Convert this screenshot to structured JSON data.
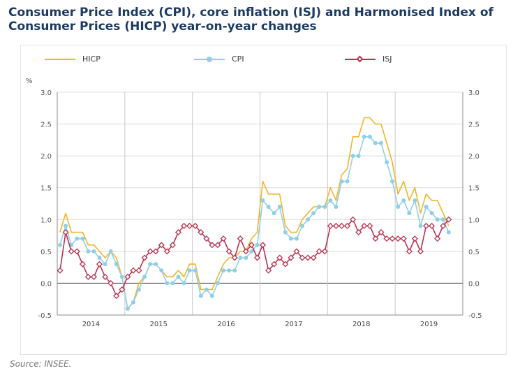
{
  "title": "Consumer Price Index (CPI), core inflation (ISJ) and Harmonised Index of Consumer Prices (HICP) year-on-year changes",
  "source": "Source: INSEE.",
  "colors": {
    "HICP": "#f0b429",
    "CPI": "#8fd0e6",
    "ISJ": "#b8324f"
  },
  "legend": [
    {
      "name": "HICP",
      "marker": "none"
    },
    {
      "name": "CPI",
      "marker": "circle"
    },
    {
      "name": "ISJ",
      "marker": "diamond"
    }
  ],
  "chart_data": {
    "type": "line",
    "unit_label": "%",
    "ylim": [
      -0.5,
      3.0
    ],
    "yticks": [
      "3.0",
      "2.5",
      "2.0",
      "1.5",
      "1.0",
      "0.5",
      "0.0",
      "-0.5"
    ],
    "yticks_values": [
      3.0,
      2.5,
      2.0,
      1.5,
      1.0,
      0.5,
      0.0,
      -0.5
    ],
    "years": [
      "2014",
      "2015",
      "2016",
      "2017",
      "2018",
      "2019"
    ],
    "months_per_year": 12,
    "x_start": "2014-01",
    "grid": true,
    "legend_position": "top",
    "series": [
      {
        "name": "HICP",
        "values": [
          0.8,
          1.1,
          0.8,
          0.8,
          0.8,
          0.6,
          0.6,
          0.5,
          0.4,
          0.5,
          0.4,
          0.1,
          -0.4,
          -0.3,
          0.0,
          0.1,
          0.3,
          0.3,
          0.2,
          0.1,
          0.1,
          0.2,
          0.1,
          0.3,
          0.3,
          -0.1,
          -0.1,
          -0.1,
          0.1,
          0.3,
          0.4,
          0.4,
          0.5,
          0.5,
          0.7,
          0.8,
          1.6,
          1.4,
          1.4,
          1.4,
          0.9,
          0.8,
          0.8,
          1.0,
          1.1,
          1.2,
          1.2,
          1.2,
          1.5,
          1.3,
          1.7,
          1.8,
          2.3,
          2.3,
          2.6,
          2.6,
          2.5,
          2.5,
          2.2,
          1.9,
          1.4,
          1.6,
          1.3,
          1.5,
          1.1,
          1.4,
          1.3,
          1.3,
          1.1,
          0.9
        ]
      },
      {
        "name": "CPI",
        "values": [
          0.6,
          0.9,
          0.6,
          0.7,
          0.7,
          0.5,
          0.5,
          0.4,
          0.3,
          0.5,
          0.3,
          0.1,
          -0.4,
          -0.3,
          -0.1,
          0.1,
          0.3,
          0.3,
          0.2,
          0.0,
          0.0,
          0.1,
          0.0,
          0.2,
          0.2,
          -0.2,
          -0.1,
          -0.2,
          0.0,
          0.2,
          0.2,
          0.2,
          0.4,
          0.4,
          0.5,
          0.6,
          1.3,
          1.2,
          1.1,
          1.2,
          0.8,
          0.7,
          0.7,
          0.9,
          1.0,
          1.1,
          1.2,
          1.2,
          1.3,
          1.2,
          1.6,
          1.6,
          2.0,
          2.0,
          2.3,
          2.3,
          2.2,
          2.2,
          1.9,
          1.6,
          1.2,
          1.3,
          1.1,
          1.3,
          0.9,
          1.2,
          1.1,
          1.0,
          1.0,
          0.8
        ]
      },
      {
        "name": "ISJ",
        "values": [
          0.2,
          0.8,
          0.5,
          0.5,
          0.3,
          0.1,
          0.1,
          0.3,
          0.1,
          0.0,
          -0.2,
          -0.1,
          0.1,
          0.2,
          0.2,
          0.4,
          0.5,
          0.5,
          0.6,
          0.5,
          0.6,
          0.8,
          0.9,
          0.9,
          0.9,
          0.8,
          0.7,
          0.6,
          0.6,
          0.7,
          0.5,
          0.4,
          0.7,
          0.5,
          0.6,
          0.4,
          0.6,
          0.2,
          0.3,
          0.4,
          0.3,
          0.4,
          0.5,
          0.4,
          0.4,
          0.4,
          0.5,
          0.5,
          0.9,
          0.9,
          0.9,
          0.9,
          1.0,
          0.8,
          0.9,
          0.9,
          0.7,
          0.8,
          0.7,
          0.7,
          0.7,
          0.7,
          0.5,
          0.7,
          0.5,
          0.9,
          0.9,
          0.7,
          0.9,
          1.0
        ]
      }
    ]
  }
}
